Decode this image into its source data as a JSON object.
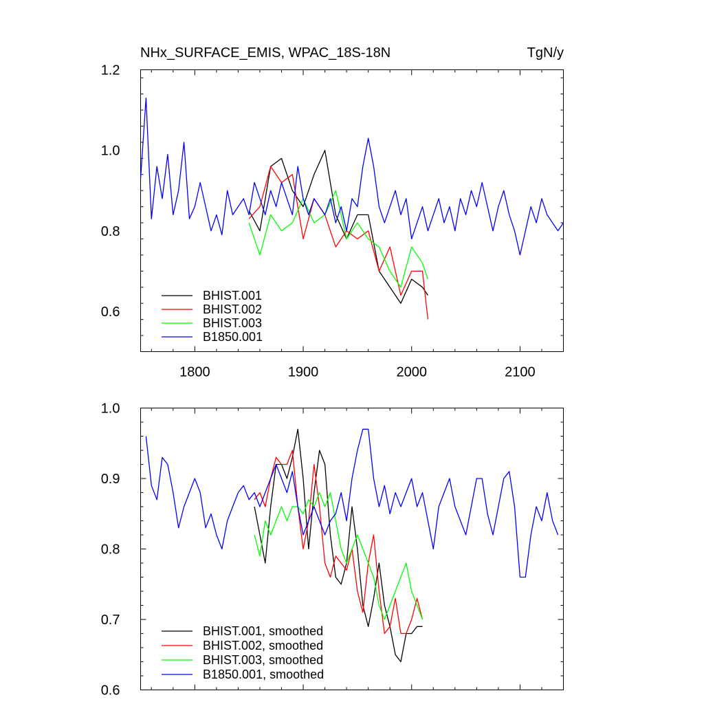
{
  "chart_data": [
    {
      "type": "line",
      "title": "NHx_SURFACE_EMIS, WPAC_18S-18N",
      "units": "TgN/y",
      "xlim": [
        1750,
        2140
      ],
      "ylim": [
        0.5,
        1.2
      ],
      "x_ticks": [
        1800,
        1900,
        2000,
        2100
      ],
      "y_ticks": [
        0.6,
        0.8,
        1.0,
        1.2
      ],
      "y_tick_labels": [
        "0.6",
        "0.8",
        "1.0",
        "1.2"
      ],
      "legend_position": "bottom-left",
      "series": [
        {
          "name": "BHIST.001",
          "color": "#000000",
          "x": [
            1850,
            1860,
            1870,
            1880,
            1890,
            1900,
            1910,
            1920,
            1930,
            1940,
            1950,
            1960,
            1970,
            1980,
            1990,
            2000,
            2010,
            2015
          ],
          "values": [
            0.85,
            0.8,
            0.96,
            0.98,
            0.9,
            0.86,
            0.94,
            1.0,
            0.84,
            0.78,
            0.84,
            0.84,
            0.7,
            0.66,
            0.62,
            0.68,
            0.66,
            0.64
          ]
        },
        {
          "name": "BHIST.002",
          "color": "#ff0000",
          "x": [
            1850,
            1860,
            1870,
            1880,
            1890,
            1900,
            1910,
            1920,
            1930,
            1940,
            1950,
            1960,
            1970,
            1980,
            1990,
            2000,
            2010,
            2015
          ],
          "values": [
            0.83,
            0.86,
            0.96,
            0.92,
            0.94,
            0.78,
            0.88,
            0.84,
            0.76,
            0.8,
            0.78,
            0.8,
            0.7,
            0.76,
            0.64,
            0.7,
            0.7,
            0.58
          ]
        },
        {
          "name": "BHIST.003",
          "color": "#00ff00",
          "x": [
            1850,
            1860,
            1870,
            1880,
            1890,
            1900,
            1910,
            1920,
            1930,
            1940,
            1950,
            1960,
            1970,
            1980,
            1990,
            2000,
            2010,
            2015
          ],
          "values": [
            0.82,
            0.74,
            0.84,
            0.8,
            0.82,
            0.88,
            0.82,
            0.84,
            0.9,
            0.78,
            0.82,
            0.78,
            0.76,
            0.7,
            0.66,
            0.76,
            0.72,
            0.68
          ]
        },
        {
          "name": "B1850.001",
          "color": "#0000ff",
          "x": [
            1750,
            1755,
            1760,
            1765,
            1770,
            1775,
            1780,
            1785,
            1790,
            1795,
            1800,
            1805,
            1810,
            1815,
            1820,
            1825,
            1830,
            1835,
            1840,
            1845,
            1850,
            1855,
            1860,
            1865,
            1870,
            1875,
            1880,
            1885,
            1890,
            1895,
            1900,
            1905,
            1910,
            1915,
            1920,
            1925,
            1930,
            1935,
            1940,
            1945,
            1950,
            1955,
            1960,
            1965,
            1970,
            1975,
            1980,
            1985,
            1990,
            1995,
            2000,
            2005,
            2010,
            2015,
            2020,
            2025,
            2030,
            2035,
            2040,
            2045,
            2050,
            2055,
            2060,
            2065,
            2070,
            2075,
            2080,
            2085,
            2090,
            2095,
            2100,
            2105,
            2110,
            2115,
            2120,
            2125,
            2130,
            2135,
            2140
          ],
          "values": [
            0.93,
            1.13,
            0.83,
            0.96,
            0.88,
            0.99,
            0.84,
            0.9,
            1.02,
            0.83,
            0.86,
            0.92,
            0.86,
            0.8,
            0.84,
            0.79,
            0.9,
            0.84,
            0.86,
            0.88,
            0.84,
            0.92,
            0.88,
            0.84,
            0.9,
            0.86,
            0.92,
            0.88,
            0.84,
            0.96,
            0.88,
            0.84,
            0.88,
            0.86,
            0.84,
            0.88,
            0.82,
            0.86,
            0.8,
            0.88,
            0.86,
            0.96,
            1.03,
            0.96,
            0.86,
            0.82,
            0.86,
            0.9,
            0.84,
            0.88,
            0.78,
            0.82,
            0.86,
            0.8,
            0.84,
            0.88,
            0.82,
            0.86,
            0.8,
            0.88,
            0.84,
            0.9,
            0.86,
            0.92,
            0.86,
            0.8,
            0.86,
            0.9,
            0.84,
            0.8,
            0.74,
            0.8,
            0.86,
            0.82,
            0.88,
            0.84,
            0.82,
            0.8,
            0.82
          ]
        }
      ]
    },
    {
      "type": "line",
      "title": "",
      "xlim": [
        1750,
        2140
      ],
      "ylim": [
        0.6,
        1.0
      ],
      "x_ticks": [
        1800,
        1900,
        2000,
        2100
      ],
      "y_ticks": [
        0.6,
        0.7,
        0.8,
        0.9,
        1.0
      ],
      "y_tick_labels": [
        "0.6",
        "0.7",
        "0.8",
        "0.9",
        "1.0"
      ],
      "legend_position": "bottom-left",
      "series": [
        {
          "name": "BHIST.001, smoothed",
          "color": "#000000",
          "x": [
            1855,
            1860,
            1865,
            1870,
            1875,
            1880,
            1885,
            1890,
            1895,
            1900,
            1905,
            1910,
            1915,
            1920,
            1925,
            1930,
            1935,
            1940,
            1945,
            1950,
            1955,
            1960,
            1965,
            1970,
            1975,
            1980,
            1985,
            1990,
            1995,
            2000,
            2005,
            2010
          ],
          "values": [
            0.86,
            0.82,
            0.78,
            0.86,
            0.92,
            0.92,
            0.9,
            0.93,
            0.97,
            0.9,
            0.8,
            0.88,
            0.94,
            0.92,
            0.82,
            0.76,
            0.75,
            0.78,
            0.86,
            0.8,
            0.72,
            0.69,
            0.73,
            0.78,
            0.72,
            0.69,
            0.65,
            0.64,
            0.68,
            0.68,
            0.69,
            0.69
          ]
        },
        {
          "name": "BHIST.002, smoothed",
          "color": "#ff0000",
          "x": [
            1855,
            1860,
            1865,
            1870,
            1875,
            1880,
            1885,
            1890,
            1895,
            1900,
            1905,
            1910,
            1915,
            1920,
            1925,
            1930,
            1935,
            1940,
            1945,
            1950,
            1955,
            1960,
            1965,
            1970,
            1975,
            1980,
            1985,
            1990,
            1995,
            2000,
            2005,
            2010
          ],
          "values": [
            0.87,
            0.88,
            0.86,
            0.9,
            0.93,
            0.92,
            0.92,
            0.94,
            0.86,
            0.8,
            0.84,
            0.92,
            0.86,
            0.78,
            0.76,
            0.79,
            0.78,
            0.77,
            0.8,
            0.74,
            0.71,
            0.78,
            0.82,
            0.74,
            0.68,
            0.69,
            0.73,
            0.68,
            0.68,
            0.7,
            0.73,
            0.7
          ]
        },
        {
          "name": "BHIST.003, smoothed",
          "color": "#00ff00",
          "x": [
            1855,
            1860,
            1865,
            1870,
            1875,
            1880,
            1885,
            1890,
            1895,
            1900,
            1905,
            1910,
            1915,
            1920,
            1925,
            1930,
            1935,
            1940,
            1945,
            1950,
            1955,
            1960,
            1965,
            1970,
            1975,
            1980,
            1985,
            1990,
            1995,
            2000,
            2005,
            2010
          ],
          "values": [
            0.82,
            0.79,
            0.84,
            0.82,
            0.84,
            0.86,
            0.84,
            0.86,
            0.86,
            0.85,
            0.87,
            0.86,
            0.88,
            0.86,
            0.88,
            0.84,
            0.8,
            0.78,
            0.8,
            0.82,
            0.8,
            0.78,
            0.76,
            0.72,
            0.7,
            0.72,
            0.74,
            0.76,
            0.78,
            0.74,
            0.72,
            0.7
          ]
        },
        {
          "name": "B1850.001, smoothed",
          "color": "#0000ff",
          "x": [
            1755,
            1760,
            1765,
            1770,
            1775,
            1780,
            1785,
            1790,
            1795,
            1800,
            1805,
            1810,
            1815,
            1820,
            1825,
            1830,
            1835,
            1840,
            1845,
            1850,
            1855,
            1860,
            1865,
            1870,
            1875,
            1880,
            1885,
            1890,
            1895,
            1900,
            1905,
            1910,
            1915,
            1920,
            1925,
            1930,
            1935,
            1940,
            1945,
            1950,
            1955,
            1960,
            1965,
            1970,
            1975,
            1980,
            1985,
            1990,
            1995,
            2000,
            2005,
            2010,
            2015,
            2020,
            2025,
            2030,
            2035,
            2040,
            2045,
            2050,
            2055,
            2060,
            2065,
            2070,
            2075,
            2080,
            2085,
            2090,
            2095,
            2100,
            2105,
            2110,
            2115,
            2120,
            2125,
            2130,
            2135
          ],
          "values": [
            0.96,
            0.89,
            0.87,
            0.93,
            0.92,
            0.88,
            0.83,
            0.86,
            0.88,
            0.9,
            0.88,
            0.83,
            0.85,
            0.82,
            0.8,
            0.84,
            0.86,
            0.88,
            0.89,
            0.87,
            0.88,
            0.86,
            0.88,
            0.9,
            0.92,
            0.9,
            0.88,
            0.91,
            0.86,
            0.82,
            0.84,
            0.86,
            0.84,
            0.82,
            0.84,
            0.85,
            0.88,
            0.84,
            0.9,
            0.94,
            0.97,
            0.97,
            0.9,
            0.86,
            0.89,
            0.85,
            0.88,
            0.86,
            0.88,
            0.9,
            0.86,
            0.88,
            0.84,
            0.8,
            0.86,
            0.88,
            0.9,
            0.86,
            0.84,
            0.82,
            0.86,
            0.9,
            0.9,
            0.85,
            0.82,
            0.86,
            0.9,
            0.91,
            0.86,
            0.76,
            0.76,
            0.82,
            0.86,
            0.84,
            0.88,
            0.84,
            0.82
          ]
        }
      ]
    }
  ]
}
